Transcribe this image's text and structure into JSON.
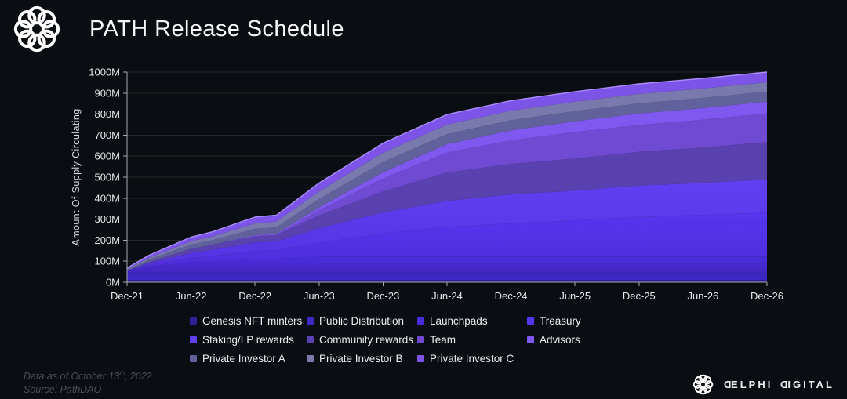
{
  "header": {
    "title": "PATH Release Schedule"
  },
  "y_axis_title": "Amount Of Supply Circulating",
  "footer": {
    "note_prefix": "Data as of October 13",
    "note_sup": "th",
    "note_suffix": ", 2022",
    "source": "Source: PathDAO"
  },
  "brand": {
    "d1": "D",
    "part1": "ELPHI",
    "d2": "D",
    "part2": "IGITAL"
  },
  "colors": {
    "background": "#0a0d11",
    "grid": "#26262c",
    "axis": "#a9a9b1",
    "tick_text": "#e8e8ec",
    "legend_text": "#edecf1",
    "footer_text": "#4c4e54",
    "envelope_stroke": "#aa8df8"
  },
  "chart_data": {
    "type": "area",
    "stacked": true,
    "title": "PATH Release Schedule",
    "ylabel": "Amount Of Supply Circulating",
    "ylim": [
      0,
      1000
    ],
    "grid": "horizontal",
    "legend_position": "bottom",
    "y_ticks": [
      "0M",
      "100M",
      "200M",
      "300M",
      "400M",
      "500M",
      "600M",
      "700M",
      "800M",
      "900M",
      "1000M"
    ],
    "x_tick_labels": [
      "Dec-21",
      "Jun-22",
      "Dec-22",
      "Jun-23",
      "Dec-23",
      "Jun-24",
      "Dec-24",
      "Jun-25",
      "Dec-25",
      "Jun-26",
      "Dec-26"
    ],
    "x_tick_months": [
      0,
      6,
      12,
      18,
      24,
      30,
      36,
      42,
      48,
      54,
      60
    ],
    "x_range_months": [
      0,
      60
    ],
    "sample_months": [
      0,
      2,
      6,
      8,
      12,
      14,
      18,
      24,
      30,
      36,
      42,
      48,
      54,
      60
    ],
    "series": [
      {
        "name": "Genesis NFT minters",
        "color": "#2f1e9c",
        "values": [
          11,
          11,
          11,
          11,
          11,
          11,
          11,
          11,
          11,
          11,
          11,
          11,
          11,
          11
        ]
      },
      {
        "name": "Public Distribution",
        "color": "#3d28c4",
        "values": [
          33,
          33,
          33,
          33,
          33,
          33,
          33,
          33,
          33,
          33,
          33,
          33,
          33,
          33
        ]
      },
      {
        "name": "Launchpads",
        "color": "#4a2edd",
        "color2": "#4326c2",
        "values": [
          10,
          30,
          50,
          55,
          65,
          66,
          78,
          78,
          78,
          78,
          78,
          78,
          78,
          78
        ]
      },
      {
        "name": "Treasury",
        "color": "#5636ef",
        "color2": "#4d2dd8",
        "values": [
          0,
          8,
          20,
          25,
          40,
          42,
          65,
          110,
          140,
          158,
          172,
          188,
          198,
          208
        ]
      },
      {
        "name": "Staking/LP rewards",
        "color": "#6040f2",
        "color2": "#5232e0",
        "values": [
          0,
          8,
          25,
          30,
          40,
          42,
          70,
          100,
          125,
          138,
          142,
          150,
          153,
          159
        ]
      },
      {
        "name": "Community rewards",
        "color": "#5a41b0",
        "values": [
          0,
          5,
          20,
          24,
          30,
          31,
          60,
          100,
          135,
          145,
          152,
          160,
          168,
          178
        ]
      },
      {
        "name": "Team",
        "color": "#6f4bd3",
        "values": [
          0,
          0,
          0,
          0,
          0,
          0,
          25,
          62,
          95,
          112,
          126,
          128,
          132,
          136
        ]
      },
      {
        "name": "Advisors",
        "color": "#7f58ef",
        "values": [
          0,
          0,
          0,
          0,
          5,
          5,
          14,
          30,
          40,
          48,
          52,
          55,
          56,
          56
        ]
      },
      {
        "name": "Private Investor A",
        "color": "#61619c",
        "values": [
          5,
          12,
          20,
          22,
          30,
          31,
          40,
          48,
          48,
          48,
          48,
          48,
          48,
          48
        ]
      },
      {
        "name": "Private Investor B",
        "color": "#7979ae",
        "values": [
          4,
          8,
          16,
          18,
          26,
          27,
          36,
          44,
          45,
          45,
          45,
          45,
          45,
          45
        ]
      },
      {
        "name": "Private Investor C",
        "color": "#7c55e8",
        "values": [
          5,
          12,
          20,
          22,
          30,
          31,
          40,
          46,
          48,
          48,
          48,
          48,
          48,
          48
        ]
      }
    ]
  }
}
